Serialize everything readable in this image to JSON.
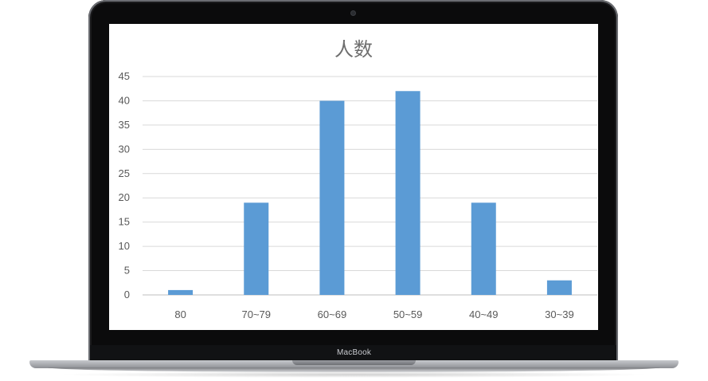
{
  "device": {
    "brand_label": "MacBook"
  },
  "chart_data": {
    "type": "bar",
    "title": "人数",
    "categories": [
      "80",
      "70~79",
      "60~69",
      "50~59",
      "40~49",
      "30~39"
    ],
    "values": [
      1,
      19,
      40,
      42,
      19,
      3
    ],
    "ylim": [
      0,
      45
    ],
    "yticks": [
      0,
      5,
      10,
      15,
      20,
      25,
      30,
      35,
      40,
      45
    ],
    "grid": true,
    "legend": "none",
    "xlabel": "",
    "ylabel": "",
    "colors": {
      "bar": "#5b9bd5",
      "grid": "#d9d9d9",
      "axis": "#bfbfbf",
      "tick_text": "#595959",
      "title": "#6e6e6e"
    }
  }
}
